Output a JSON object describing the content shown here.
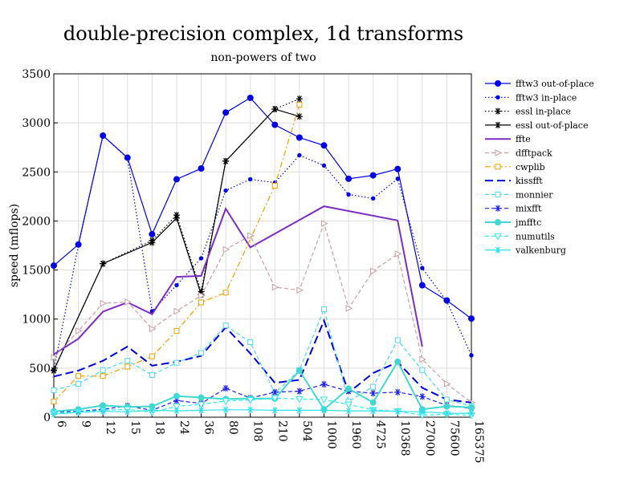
{
  "chart_data": {
    "type": "line",
    "title": "double-precision complex, 1d transforms",
    "subtitle": "non-powers of two",
    "xlabel": "",
    "ylabel": "speed (mflops)",
    "categories": [
      "6",
      "9",
      "12",
      "15",
      "18",
      "24",
      "36",
      "80",
      "108",
      "210",
      "504",
      "1000",
      "1960",
      "4725",
      "10368",
      "27000",
      "75600",
      "165375"
    ],
    "ylim": [
      0,
      3500
    ],
    "yticks": [
      0,
      500,
      1000,
      1500,
      2000,
      2500,
      3000,
      3500
    ],
    "grid": true,
    "legend_position": "right",
    "series": [
      {
        "name": "fftw3 out-of-place",
        "color": "#0000ee",
        "dash": "solid",
        "width": 1.2,
        "marker": "circle-filled",
        "values": [
          1545,
          1760,
          2870,
          2645,
          1865,
          2425,
          2535,
          3105,
          3255,
          2980,
          2850,
          2770,
          2430,
          2465,
          2530,
          1345,
          1190,
          1005
        ]
      },
      {
        "name": "fftw3 in-place",
        "color": "#0000ee",
        "dash": "dot",
        "width": 1.2,
        "marker": "dot-filled",
        "values": [
          480,
          1750,
          2870,
          2640,
          1080,
          1345,
          1620,
          2310,
          2425,
          2390,
          2670,
          2565,
          2270,
          2230,
          2430,
          1520,
          1180,
          630
        ]
      },
      {
        "name": "essl in-place",
        "color": "#000000",
        "dash": "dot",
        "width": 1.2,
        "marker": "star",
        "values": [
          475,
          null,
          1565,
          null,
          1800,
          2060,
          1280,
          2610,
          null,
          3140,
          3245,
          null,
          null,
          null,
          null,
          null,
          null,
          null
        ]
      },
      {
        "name": "essl out-of-place",
        "color": "#000000",
        "dash": "solid",
        "width": 1.2,
        "marker": "star",
        "values": [
          480,
          null,
          1565,
          null,
          1780,
          2030,
          1250,
          2610,
          null,
          3140,
          3065,
          null,
          null,
          null,
          null,
          null,
          null,
          null
        ]
      },
      {
        "name": "ffte",
        "color": "#7b2fbf",
        "dash": "solid",
        "width": 2,
        "marker": "none",
        "values": [
          640,
          800,
          1075,
          1170,
          1050,
          1430,
          1440,
          2125,
          1730,
          null,
          null,
          2150,
          null,
          null,
          2005,
          720,
          null,
          null
        ]
      },
      {
        "name": "dfftpack",
        "color": "#c8a0a0",
        "dash": "dash",
        "width": 1.2,
        "marker": "triangle-right",
        "values": [
          610,
          880,
          1160,
          1175,
          900,
          1080,
          1240,
          1710,
          1850,
          1325,
          1295,
          1975,
          1110,
          1490,
          1665,
          590,
          340,
          150
        ]
      },
      {
        "name": "cwplib",
        "color": "#f0a000",
        "dash": "dashdot",
        "width": 1.2,
        "marker": "square",
        "values": [
          160,
          420,
          420,
          515,
          620,
          880,
          1170,
          1270,
          null,
          2360,
          3185,
          null,
          null,
          null,
          null,
          null,
          null,
          null
        ]
      },
      {
        "name": "kissfft",
        "color": "#0000dd",
        "dash": "longdash",
        "width": 2,
        "marker": "none",
        "values": [
          415,
          475,
          575,
          720,
          525,
          565,
          625,
          915,
          650,
          350,
          380,
          985,
          250,
          450,
          560,
          300,
          180,
          150
        ]
      },
      {
        "name": "monnier",
        "color": "#50d8e8",
        "dash": "dash",
        "width": 1.2,
        "marker": "square",
        "values": [
          275,
          340,
          480,
          575,
          430,
          555,
          655,
          935,
          765,
          245,
          480,
          1100,
          160,
          310,
          785,
          480,
          180,
          115
        ]
      },
      {
        "name": "mixfft",
        "color": "#2020ee",
        "dash": "dash",
        "width": 1.2,
        "marker": "star",
        "values": [
          55,
          60,
          80,
          115,
          70,
          170,
          140,
          295,
          195,
          255,
          265,
          335,
          265,
          245,
          255,
          210,
          120,
          90
        ]
      },
      {
        "name": "jmfftc",
        "color": "#40d8d0",
        "dash": "solid",
        "width": 2,
        "marker": "circle-filled",
        "values": [
          60,
          80,
          120,
          105,
          110,
          215,
          200,
          185,
          190,
          190,
          475,
          80,
          290,
          150,
          565,
          80,
          110,
          100
        ]
      },
      {
        "name": "numutils",
        "color": "#30e8f0",
        "dash": "dash",
        "width": 1.2,
        "marker": "triangle-down",
        "values": [
          40,
          55,
          70,
          80,
          50,
          110,
          130,
          165,
          175,
          195,
          185,
          180,
          130,
          75,
          60,
          20,
          30,
          20
        ]
      },
      {
        "name": "valkenburg",
        "color": "#30e0e8",
        "dash": "solid",
        "width": 1.2,
        "marker": "star",
        "values": [
          30,
          50,
          60,
          55,
          70,
          65,
          70,
          75,
          75,
          70,
          70,
          70,
          65,
          65,
          60,
          55,
          40,
          40
        ]
      }
    ]
  }
}
